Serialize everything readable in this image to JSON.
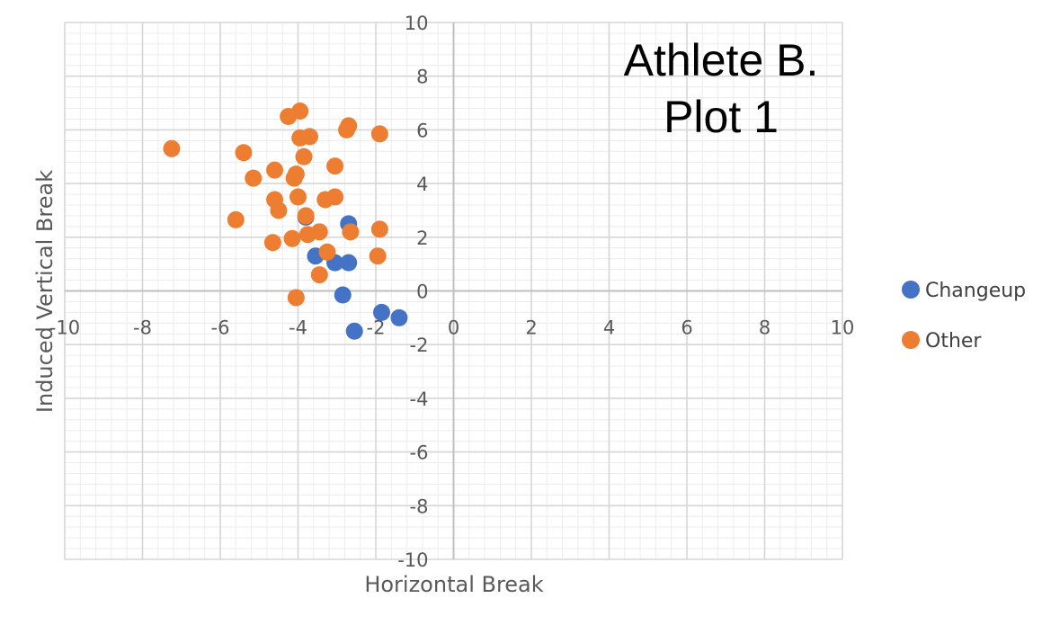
{
  "chart_data": {
    "type": "scatter",
    "title_lines": [
      "Athlete B.",
      "Plot 1"
    ],
    "xlabel": "Horizontal Break",
    "ylabel": "Induced Vertical Break",
    "xlim": [
      -10,
      10
    ],
    "ylim": [
      -10,
      10
    ],
    "x_ticks": [
      -10,
      -8,
      -6,
      -4,
      -2,
      0,
      2,
      4,
      6,
      8,
      10
    ],
    "y_ticks": [
      -10,
      -8,
      -6,
      -4,
      -2,
      0,
      2,
      4,
      6,
      8,
      10
    ],
    "grid": true,
    "minor_grid": true,
    "legend_position": "right",
    "series": [
      {
        "name": "Changeup",
        "color": "#4472C4",
        "points": [
          {
            "x": -3.8,
            "y": 2.75
          },
          {
            "x": -2.7,
            "y": 2.5
          },
          {
            "x": -3.55,
            "y": 1.3
          },
          {
            "x": -3.05,
            "y": 1.05
          },
          {
            "x": -2.7,
            "y": 1.05
          },
          {
            "x": -2.85,
            "y": -0.15
          },
          {
            "x": -1.85,
            "y": -0.8
          },
          {
            "x": -1.4,
            "y": -1.0
          },
          {
            "x": -2.55,
            "y": -1.5
          }
        ]
      },
      {
        "name": "Other",
        "color": "#ED7D31",
        "points": [
          {
            "x": -7.25,
            "y": 5.3
          },
          {
            "x": -5.4,
            "y": 5.15
          },
          {
            "x": -5.15,
            "y": 4.2
          },
          {
            "x": -4.6,
            "y": 4.5
          },
          {
            "x": -4.05,
            "y": 4.35
          },
          {
            "x": -4.1,
            "y": 4.2
          },
          {
            "x": -4.25,
            "y": 6.5
          },
          {
            "x": -3.95,
            "y": 6.7
          },
          {
            "x": -3.95,
            "y": 5.7
          },
          {
            "x": -3.7,
            "y": 5.75
          },
          {
            "x": -3.85,
            "y": 5.0
          },
          {
            "x": -3.05,
            "y": 4.65
          },
          {
            "x": -2.7,
            "y": 6.15
          },
          {
            "x": -2.75,
            "y": 6.0
          },
          {
            "x": -1.9,
            "y": 5.85
          },
          {
            "x": -4.6,
            "y": 3.4
          },
          {
            "x": -4.5,
            "y": 3.0
          },
          {
            "x": -4.0,
            "y": 3.5
          },
          {
            "x": -3.3,
            "y": 3.4
          },
          {
            "x": -3.05,
            "y": 3.5
          },
          {
            "x": -5.6,
            "y": 2.65
          },
          {
            "x": -3.8,
            "y": 2.8
          },
          {
            "x": -3.75,
            "y": 2.1
          },
          {
            "x": -3.45,
            "y": 2.2
          },
          {
            "x": -2.65,
            "y": 2.2
          },
          {
            "x": -1.9,
            "y": 2.3
          },
          {
            "x": -4.65,
            "y": 1.8
          },
          {
            "x": -4.15,
            "y": 1.95
          },
          {
            "x": -3.25,
            "y": 1.45
          },
          {
            "x": -1.95,
            "y": 1.3
          },
          {
            "x": -3.45,
            "y": 0.6
          },
          {
            "x": -4.05,
            "y": -0.25
          }
        ]
      }
    ]
  }
}
